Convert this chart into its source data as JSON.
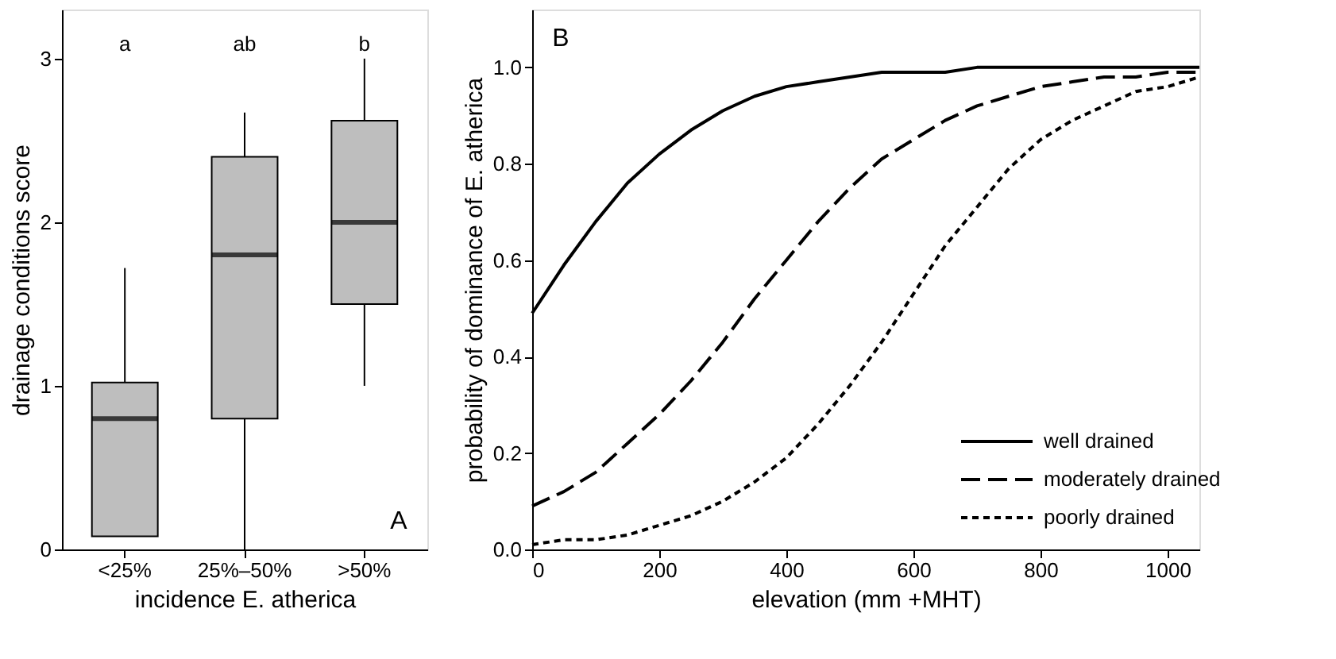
{
  "chart_data": [
    {
      "type": "box",
      "xlabel": "incidence E. atherica",
      "ylabel": "drainage conditions score",
      "categories": [
        "<25%",
        "25%–50%",
        ">50%"
      ],
      "series": [
        {
          "color": "#bebebe",
          "boxes": [
            {
              "low": 0.08,
              "q1": 0.08,
              "median": 0.8,
              "q3": 1.02,
              "high": 1.72
            },
            {
              "low": 0.0,
              "q1": 0.8,
              "median": 1.8,
              "q3": 2.4,
              "high": 2.67
            },
            {
              "low": 1.0,
              "q1": 1.5,
              "median": 2.0,
              "q3": 2.62,
              "high": 3.0
            }
          ]
        }
      ],
      "ylim": [
        0,
        3.3
      ],
      "yticks": [
        0,
        1,
        2,
        3
      ],
      "grid": false,
      "legend": false,
      "annotations": [
        "a",
        "ab",
        "b",
        "A"
      ]
    },
    {
      "type": "line",
      "xlabel": "elevation (mm +MHT)",
      "ylabel": "probability of dominance of E. atherica",
      "x": [
        0,
        50,
        100,
        150,
        200,
        250,
        300,
        350,
        400,
        450,
        500,
        550,
        600,
        650,
        700,
        750,
        800,
        850,
        900,
        950,
        1000,
        1050
      ],
      "series": [
        {
          "name": "well drained",
          "color": "#000000",
          "line_style": "solid",
          "values": [
            0.49,
            0.59,
            0.68,
            0.76,
            0.82,
            0.87,
            0.91,
            0.94,
            0.96,
            0.97,
            0.98,
            0.99,
            0.99,
            0.99,
            1.0,
            1.0,
            1.0,
            1.0,
            1.0,
            1.0,
            1.0,
            1.0
          ]
        },
        {
          "name": "moderately drained",
          "color": "#000000",
          "line_style": "dashed",
          "values": [
            0.09,
            0.12,
            0.16,
            0.22,
            0.28,
            0.35,
            0.43,
            0.52,
            0.6,
            0.68,
            0.75,
            0.81,
            0.85,
            0.89,
            0.92,
            0.94,
            0.96,
            0.97,
            0.98,
            0.98,
            0.99,
            0.99
          ]
        },
        {
          "name": "poorly drained",
          "color": "#000000",
          "line_style": "dotted",
          "values": [
            0.01,
            0.02,
            0.02,
            0.03,
            0.05,
            0.07,
            0.1,
            0.14,
            0.19,
            0.26,
            0.34,
            0.43,
            0.53,
            0.63,
            0.71,
            0.79,
            0.85,
            0.89,
            0.92,
            0.95,
            0.96,
            0.98
          ]
        }
      ],
      "xlim": [
        0,
        1050
      ],
      "xticks": [
        0,
        200,
        400,
        600,
        800,
        1000
      ],
      "ylim": [
        0,
        1.12
      ],
      "yticks": [
        {
          "value": 0,
          "label": "0.0"
        },
        {
          "value": 0.2,
          "label": "0.2"
        },
        {
          "value": 0.4,
          "label": "0.4"
        },
        {
          "value": 0.6,
          "label": "0.6"
        },
        {
          "value": 0.8,
          "label": "0.8"
        },
        {
          "value": 1.0,
          "label": "1.0"
        }
      ],
      "grid": false,
      "legend": "bottom right",
      "marker": "none",
      "annotations": [
        "B"
      ]
    }
  ]
}
